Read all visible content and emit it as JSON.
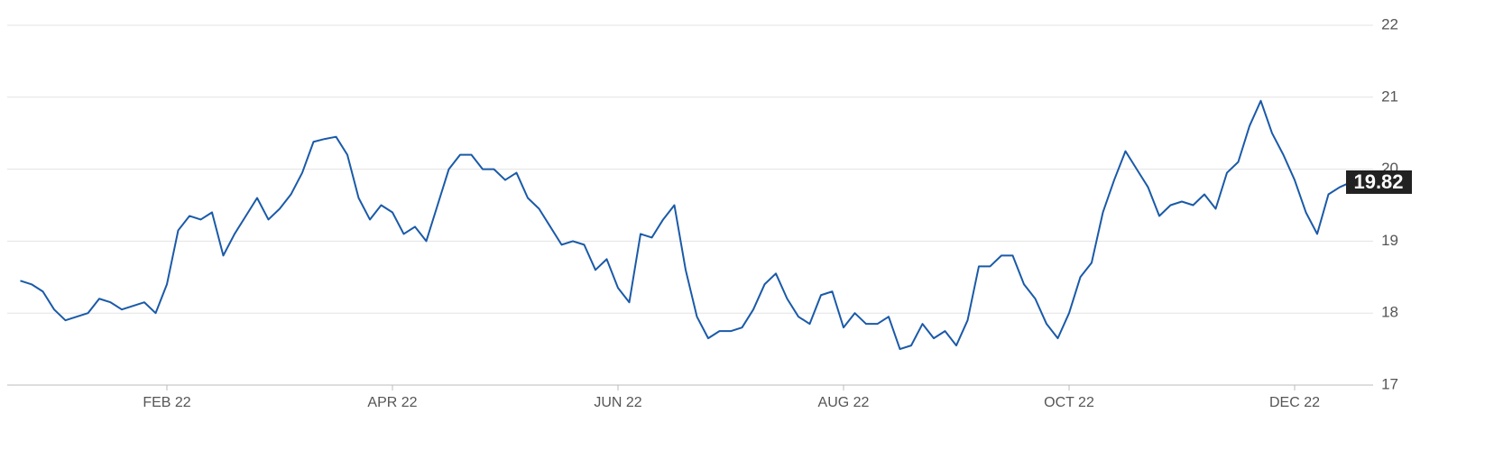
{
  "chart_data": {
    "type": "line",
    "categories": [
      null,
      null,
      null,
      null,
      null,
      null,
      null,
      null,
      null,
      null,
      null,
      null,
      null,
      "FEB 22",
      null,
      null,
      null,
      null,
      null,
      null,
      null,
      null,
      null,
      null,
      null,
      null,
      null,
      null,
      null,
      null,
      null,
      null,
      null,
      "APR 22",
      null,
      null,
      null,
      null,
      null,
      null,
      null,
      null,
      null,
      null,
      null,
      null,
      null,
      null,
      null,
      null,
      null,
      null,
      null,
      "JUN 22",
      null,
      null,
      null,
      null,
      null,
      null,
      null,
      null,
      null,
      null,
      null,
      null,
      null,
      null,
      null,
      null,
      null,
      null,
      null,
      "AUG 22",
      null,
      null,
      null,
      null,
      null,
      null,
      null,
      null,
      null,
      null,
      null,
      null,
      null,
      null,
      null,
      null,
      null,
      null,
      null,
      "OCT 22",
      null,
      null,
      null,
      null,
      null,
      null,
      null,
      null,
      null,
      null,
      null,
      null,
      null,
      null,
      null,
      null,
      null,
      null,
      null,
      "DEC 22",
      null,
      null,
      null,
      null,
      null
    ],
    "series": [
      {
        "color": "#1a5aa8",
        "values": [
          18.45,
          18.4,
          18.3,
          18.05,
          17.9,
          17.95,
          18.0,
          18.2,
          18.15,
          18.05,
          18.1,
          18.15,
          18.0,
          18.4,
          19.15,
          19.35,
          19.3,
          19.4,
          18.8,
          19.1,
          19.35,
          19.6,
          19.3,
          19.45,
          19.65,
          19.95,
          20.38,
          20.42,
          20.45,
          20.2,
          19.6,
          19.3,
          19.5,
          19.4,
          19.1,
          19.2,
          19.0,
          19.5,
          20.0,
          20.2,
          20.2,
          20.0,
          20.0,
          19.85,
          19.95,
          19.6,
          19.45,
          19.2,
          18.95,
          19.0,
          18.95,
          18.6,
          18.75,
          18.35,
          18.15,
          19.1,
          19.05,
          19.3,
          19.5,
          18.6,
          17.95,
          17.65,
          17.75,
          17.75,
          17.8,
          18.05,
          18.4,
          18.55,
          18.2,
          17.95,
          17.85,
          18.25,
          18.3,
          17.8,
          18.0,
          17.85,
          17.85,
          17.95,
          17.5,
          17.55,
          17.85,
          17.65,
          17.75,
          17.55,
          17.9,
          18.65,
          18.65,
          18.8,
          18.8,
          18.4,
          18.2,
          17.85,
          17.65,
          18.0,
          18.5,
          18.7,
          19.4,
          19.85,
          20.25,
          20.0,
          19.75,
          19.35,
          19.5,
          19.55,
          19.5,
          19.65,
          19.45,
          19.95,
          20.1,
          20.6,
          20.95,
          20.5,
          20.2,
          19.85,
          19.4,
          19.1,
          19.65,
          19.75,
          19.82
        ]
      }
    ],
    "ylim": [
      17,
      22
    ],
    "yticks": [
      17,
      18,
      19,
      20,
      21,
      22
    ],
    "grid": true
  }
}
